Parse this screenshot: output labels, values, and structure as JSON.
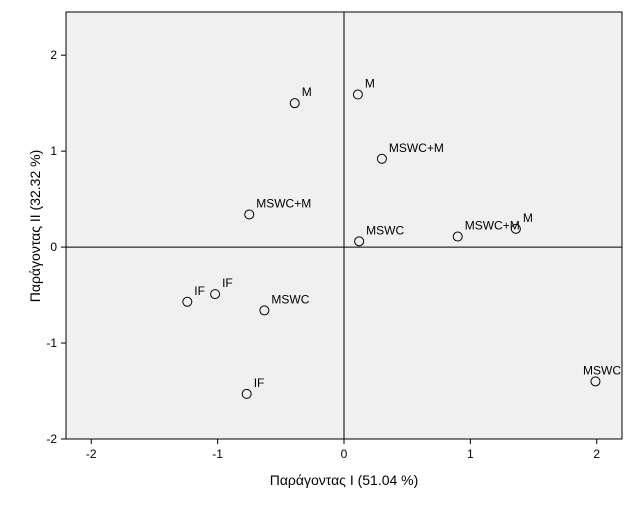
{
  "chart_data": {
    "type": "scatter",
    "title": "",
    "xlabel": "Παράγοντας I (51.04 %)",
    "ylabel": "Παράγοντας II (32.32 %)",
    "xlim": [
      -2.2,
      2.2
    ],
    "ylim": [
      -2.0,
      2.45
    ],
    "xticks": [
      -2,
      -1,
      0,
      1,
      2
    ],
    "yticks": [
      -2,
      -1,
      0,
      1,
      2
    ],
    "grid": false,
    "reference_lines": {
      "x": 0,
      "y": 0
    },
    "plot_background": "#f0f0f0",
    "marker_color": "#000000",
    "points": [
      {
        "x": -0.39,
        "y": 1.5,
        "label": "M"
      },
      {
        "x": 0.11,
        "y": 1.59,
        "label": "M"
      },
      {
        "x": 0.3,
        "y": 0.92,
        "label": "MSWC+M"
      },
      {
        "x": -0.75,
        "y": 0.34,
        "label": "MSWC+M"
      },
      {
        "x": 0.12,
        "y": 0.06,
        "label": "MSWC"
      },
      {
        "x": 0.9,
        "y": 0.11,
        "label": "MSWC+M"
      },
      {
        "x": 1.36,
        "y": 0.19,
        "label": "M"
      },
      {
        "x": -1.24,
        "y": -0.57,
        "label": "IF"
      },
      {
        "x": -1.02,
        "y": -0.49,
        "label": "IF"
      },
      {
        "x": -0.63,
        "y": -0.66,
        "label": "MSWC"
      },
      {
        "x": -0.77,
        "y": -1.53,
        "label": "IF"
      },
      {
        "x": 1.99,
        "y": -1.4,
        "label": "MSWC"
      }
    ]
  }
}
